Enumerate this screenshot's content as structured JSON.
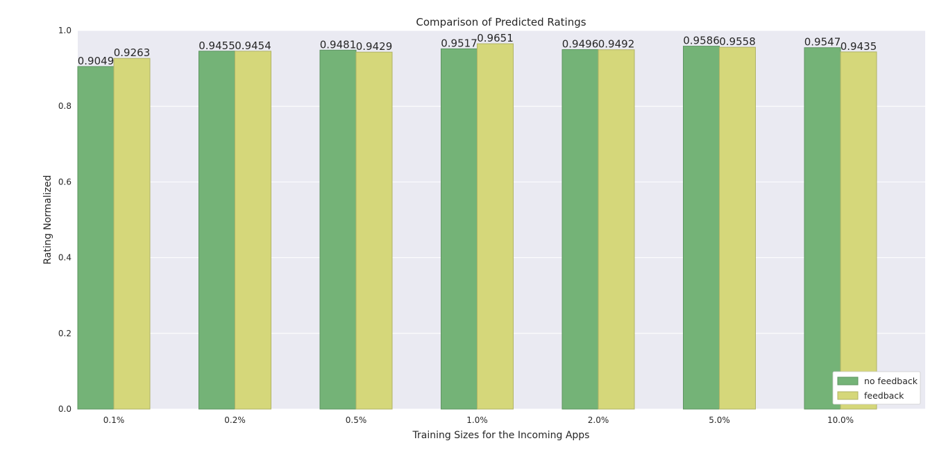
{
  "chart_data": {
    "type": "bar",
    "title": "Comparison of Predicted Ratings",
    "xlabel": "Training Sizes for the Incoming Apps",
    "ylabel": "Rating Normalized",
    "categories": [
      "0.1%",
      "0.2%",
      "0.5%",
      "1.0%",
      "2.0%",
      "5.0%",
      "10.0%"
    ],
    "series": [
      {
        "name": "no feedback",
        "color": "#74b377",
        "edge": "#5e9462",
        "values": [
          0.9049,
          0.9455,
          0.9481,
          0.9517,
          0.9496,
          0.9586,
          0.9547
        ],
        "labels": [
          "0.9049",
          "0.9455",
          "0.9481",
          "0.9517",
          "0.9496",
          "0.9586",
          "0.9547"
        ]
      },
      {
        "name": "feedback",
        "color": "#d5d77a",
        "edge": "#b0b366",
        "values": [
          0.9263,
          0.9454,
          0.9429,
          0.9651,
          0.9492,
          0.9558,
          0.9435
        ],
        "labels": [
          "0.9263",
          "0.9454",
          "0.9429",
          "0.9651",
          "0.9492",
          "0.9558",
          "0.9435"
        ]
      }
    ],
    "ylim": [
      0,
      1.0
    ],
    "yticks": [
      {
        "value": 0.0,
        "label": "0.0"
      },
      {
        "value": 0.2,
        "label": "0.2"
      },
      {
        "value": 0.4,
        "label": "0.4"
      },
      {
        "value": 0.6,
        "label": "0.6"
      },
      {
        "value": 0.8,
        "label": "0.8"
      },
      {
        "value": 1.0,
        "label": "1.0"
      }
    ],
    "grid": true,
    "legend": {
      "placement": "bottom-right"
    },
    "background": "#eaeaf2"
  }
}
